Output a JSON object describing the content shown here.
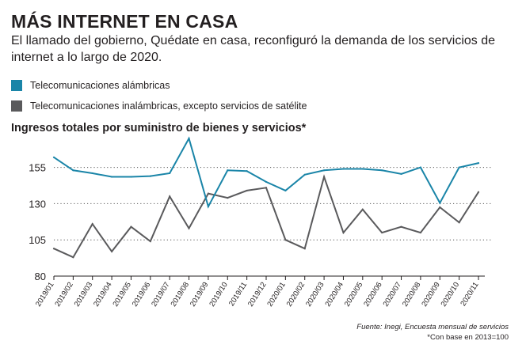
{
  "header": {
    "title": "MÁS INTERNET EN CASA",
    "subtitle": "El llamado del gobierno, Quédate en casa, reconfiguró la demanda de los servicios de internet a lo largo de 2020."
  },
  "legend": [
    {
      "label": "Telecomunicaciones alámbricas",
      "color": "#1a85a8"
    },
    {
      "label": "Telecomunicaciones inalámbricas, excepto servicios de satélite",
      "color": "#5a5a5c"
    }
  ],
  "footer": {
    "source": "Fuente: Inegi, Encuesta mensual de servicios",
    "note": "*Con base en 2013=100"
  },
  "chart_data": {
    "type": "line",
    "title": "Ingresos totales por suministro de bienes y servicios*",
    "x": [
      "2019/01",
      "2019/02",
      "2019/03",
      "2019/04",
      "2019/05",
      "2019/06",
      "2019/07",
      "2019/08",
      "2019/09",
      "2019/10",
      "2019/11",
      "2019/12",
      "2020/01",
      "2020/02",
      "2020/03",
      "2020/04",
      "2020/05",
      "2020/06",
      "2020/07",
      "2020/08",
      "2020/09",
      "2020/10",
      "2020/11"
    ],
    "yticks": [
      80,
      105,
      130,
      155
    ],
    "ylim": [
      80,
      175
    ],
    "grid": "horizontal dotted",
    "legend_position": "top-left",
    "series": [
      {
        "name": "Telecomunicaciones alámbricas",
        "color": "#1a85a8",
        "values": [
          162,
          153,
          151,
          148.5,
          148.5,
          149,
          151,
          175,
          128,
          153,
          152.5,
          145,
          139,
          150,
          153,
          154,
          154,
          153,
          150.5,
          155,
          130.5,
          155,
          158
        ]
      },
      {
        "name": "Telecomunicaciones inalámbricas, excepto servicios de satélite",
        "color": "#5a5a5c",
        "values": [
          99,
          93,
          116,
          97,
          114,
          104,
          135,
          113,
          137,
          134,
          139,
          141,
          105,
          99,
          148.5,
          110,
          126,
          110,
          114,
          110,
          127.5,
          117,
          138
        ]
      }
    ]
  }
}
